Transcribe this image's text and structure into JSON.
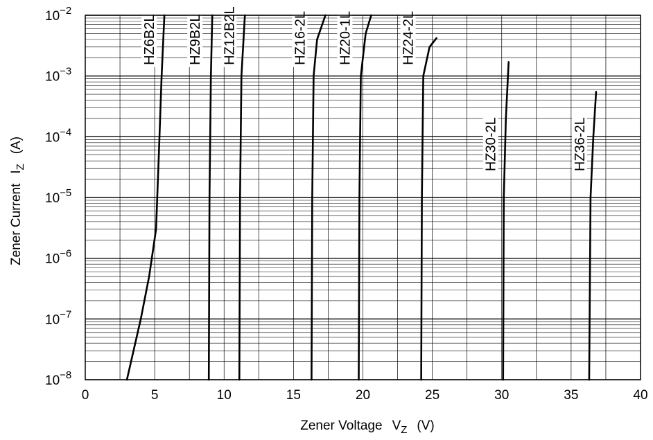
{
  "chart_data": {
    "type": "line",
    "title": "",
    "xlabel": {
      "main": "Zener Voltage",
      "symbol": "V",
      "subscript": "Z",
      "unit": "(V)"
    },
    "ylabel": {
      "main": "Zener Current",
      "symbol": "I",
      "subscript": "Z",
      "unit": "(A)"
    },
    "xlim": [
      0,
      40
    ],
    "ylim": [
      1e-08,
      0.01
    ],
    "yscale": "log",
    "grid": true,
    "x_ticks": [
      0,
      5,
      10,
      15,
      20,
      25,
      30,
      35,
      40
    ],
    "x_tick_labels": [
      "0",
      "5",
      "10",
      "15",
      "20",
      "25",
      "30",
      "35",
      "40"
    ],
    "y_ticks": [
      {
        "value": 1e-08,
        "base": "10",
        "exp": "−8"
      },
      {
        "value": 1e-07,
        "base": "10",
        "exp": "−7"
      },
      {
        "value": 1e-06,
        "base": "10",
        "exp": "−6"
      },
      {
        "value": 1e-05,
        "base": "10",
        "exp": "−5"
      },
      {
        "value": 0.0001,
        "base": "10",
        "exp": "−4"
      },
      {
        "value": 0.001,
        "base": "10",
        "exp": "−3"
      },
      {
        "value": 0.01,
        "base": "10",
        "exp": "−2"
      }
    ],
    "series": [
      {
        "name": "HZ6B2L",
        "points": [
          [
            3.0,
            1e-08
          ],
          [
            4.0,
            1e-07
          ],
          [
            4.6,
            5e-07
          ],
          [
            5.1,
            3e-06
          ],
          [
            5.3,
            5e-05
          ],
          [
            5.5,
            0.001
          ],
          [
            5.7,
            0.01
          ]
        ]
      },
      {
        "name": "HZ9B2L",
        "points": [
          [
            8.9,
            1e-08
          ],
          [
            8.95,
            1e-05
          ],
          [
            9.05,
            0.001
          ],
          [
            9.15,
            0.01
          ]
        ]
      },
      {
        "name": "HZ12B2L",
        "points": [
          [
            11.1,
            1e-08
          ],
          [
            11.15,
            1e-05
          ],
          [
            11.25,
            0.001
          ],
          [
            11.5,
            0.01
          ]
        ]
      },
      {
        "name": "HZ16-2L",
        "points": [
          [
            16.3,
            1e-08
          ],
          [
            16.35,
            1e-05
          ],
          [
            16.45,
            0.001
          ],
          [
            16.7,
            0.004
          ],
          [
            17.3,
            0.01
          ]
        ]
      },
      {
        "name": "HZ20-1L",
        "points": [
          [
            19.7,
            1e-08
          ],
          [
            19.75,
            1e-05
          ],
          [
            19.85,
            0.001
          ],
          [
            20.2,
            0.005
          ],
          [
            20.6,
            0.01
          ]
        ]
      },
      {
        "name": "HZ24-2L",
        "points": [
          [
            24.2,
            1e-08
          ],
          [
            24.25,
            1e-05
          ],
          [
            24.35,
            0.001
          ],
          [
            24.8,
            0.003
          ],
          [
            25.3,
            0.0042
          ]
        ]
      },
      {
        "name": "HZ30-2L",
        "points": [
          [
            30.1,
            1e-08
          ],
          [
            30.15,
            1e-05
          ],
          [
            30.3,
            0.0002
          ],
          [
            30.5,
            0.0017
          ]
        ]
      },
      {
        "name": "HZ36-2L",
        "points": [
          [
            36.3,
            1e-08
          ],
          [
            36.4,
            1e-05
          ],
          [
            36.6,
            0.0001
          ],
          [
            36.8,
            0.00055
          ]
        ]
      }
    ],
    "series_labels": [
      {
        "text": "HZ6B2L",
        "x": 4.95,
        "y": 0.0014
      },
      {
        "text": "HZ9B2L",
        "x": 8.25,
        "y": 0.0014
      },
      {
        "text": "HZ12B2L",
        "x": 10.7,
        "y": 0.0014
      },
      {
        "text": "HZ16-2L",
        "x": 15.8,
        "y": 0.0014
      },
      {
        "text": "HZ20-1L",
        "x": 19.05,
        "y": 0.0014
      },
      {
        "text": "HZ24-2L",
        "x": 23.6,
        "y": 0.0014
      },
      {
        "text": "HZ30-2L",
        "x": 29.55,
        "y": 2.5e-05
      },
      {
        "text": "HZ36-2L",
        "x": 35.95,
        "y": 2.5e-05
      }
    ]
  }
}
